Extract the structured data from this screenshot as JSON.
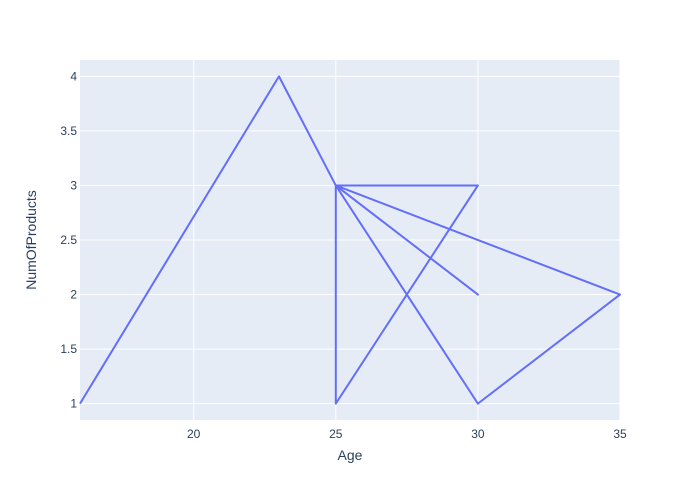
{
  "chart_data": {
    "type": "line",
    "title": "",
    "xlabel": "Age",
    "ylabel": "NumOfProducts",
    "xlim": [
      16,
      35
    ],
    "ylim": [
      0.85,
      4.15
    ],
    "xticks": [
      20,
      25,
      30,
      35
    ],
    "xtick_labels": [
      "20",
      "25",
      "30",
      "35"
    ],
    "yticks": [
      1,
      1.5,
      2,
      2.5,
      3,
      3.5,
      4
    ],
    "ytick_labels": [
      "1",
      "1.5",
      "2",
      "2.5",
      "3",
      "3.5",
      "4"
    ],
    "grid": true,
    "legend": false,
    "series": [
      {
        "x": [
          16,
          23,
          25,
          30,
          35,
          25,
          30,
          25,
          25,
          30,
          25
        ],
        "y": [
          1,
          4,
          3,
          1,
          2,
          3,
          2,
          3,
          1,
          3,
          3
        ]
      }
    ],
    "colors": {
      "line": "#636efa",
      "plot_bg": "#e5ecf6",
      "grid": "#ffffff",
      "text": "#2a3f5f"
    }
  }
}
